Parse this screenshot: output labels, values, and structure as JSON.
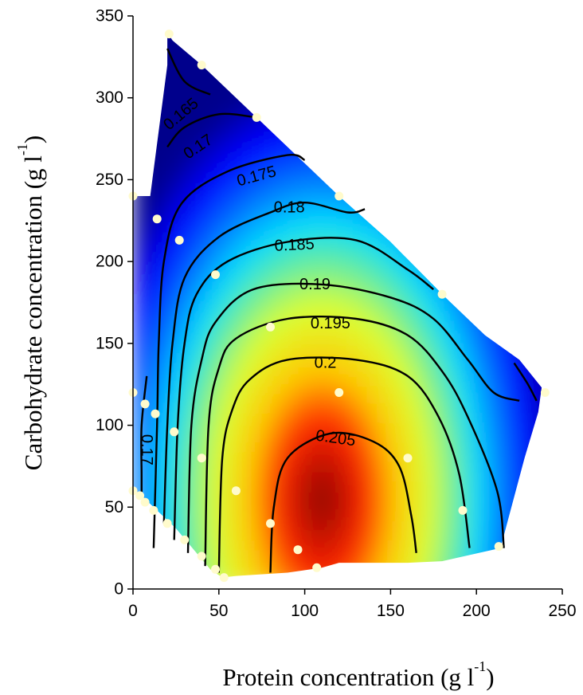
{
  "chart_data": {
    "type": "heatmap",
    "subtype": "filled-contour with scatter overlay",
    "xlabel": "Protein concentration (g l",
    "xlabel_sup": "-1",
    "xlabel_close": ")",
    "ylabel": "Carbohydrate concentration (g l",
    "ylabel_sup": "-1",
    "ylabel_close": ")",
    "xlim": [
      0,
      250
    ],
    "ylim": [
      0,
      350
    ],
    "xticks": [
      "0",
      "50",
      "100",
      "150",
      "200",
      "250"
    ],
    "yticks": [
      "0",
      "50",
      "100",
      "150",
      "200",
      "250",
      "300",
      "350"
    ],
    "grid": false,
    "colormap": "jet",
    "colors": {
      "low": "#0000cc",
      "mid": "#e6ff33",
      "high": "#8b0000",
      "points": "#fffbcc",
      "contour": "#000000"
    },
    "value_range": [
      0.16,
      0.21
    ],
    "surface_peak": {
      "x": 110,
      "y": 55
    },
    "region_outline": [
      [
        20,
        340
      ],
      [
        23,
        335
      ],
      [
        40,
        320
      ],
      [
        72,
        288
      ],
      [
        100,
        260
      ],
      [
        120,
        240
      ],
      [
        150,
        212
      ],
      [
        182,
        178
      ],
      [
        205,
        155
      ],
      [
        225,
        140
      ],
      [
        238,
        123
      ],
      [
        236,
        108
      ],
      [
        228,
        80
      ],
      [
        214,
        25
      ],
      [
        180,
        17
      ],
      [
        160,
        16
      ],
      [
        120,
        16
      ],
      [
        110,
        13
      ],
      [
        90,
        10
      ],
      [
        60,
        8
      ],
      [
        52,
        7
      ],
      [
        45,
        12
      ],
      [
        25,
        37
      ],
      [
        5,
        57
      ],
      [
        0,
        59
      ],
      [
        0,
        240
      ],
      [
        10,
        240
      ],
      [
        20,
        320
      ]
    ],
    "contours": [
      {
        "level": "0.165",
        "label_at": [
          28,
          290
        ],
        "label_angle": -40,
        "path": [
          [
            20,
            330
          ],
          [
            30,
            310
          ],
          [
            45,
            302
          ]
        ]
      },
      {
        "level": "0.17",
        "label_at": [
          38,
          270
        ],
        "label_angle": -34,
        "path": [
          [
            20,
            270
          ],
          [
            30,
            282
          ],
          [
            50,
            290
          ],
          [
            72,
            288
          ]
        ]
      },
      {
        "level": "0.17",
        "label_at": [
          8,
          85
        ],
        "label_angle": 90,
        "path": [
          [
            5,
            55
          ],
          [
            5,
            70
          ],
          [
            5,
            100
          ],
          [
            8,
            130
          ]
        ]
      },
      {
        "level": "0.175",
        "label_at": [
          72,
          252
        ],
        "label_angle": -15,
        "path": [
          [
            12,
            25
          ],
          [
            14,
            100
          ],
          [
            15,
            150
          ],
          [
            18,
            200
          ],
          [
            28,
            235
          ],
          [
            55,
            255
          ],
          [
            90,
            265
          ],
          [
            100,
            262
          ]
        ]
      },
      {
        "level": "0.18",
        "label_at": [
          91,
          233
        ],
        "label_angle": 0,
        "path": [
          [
            18,
            40
          ],
          [
            20,
            100
          ],
          [
            23,
            150
          ],
          [
            30,
            190
          ],
          [
            50,
            215
          ],
          [
            80,
            230
          ],
          [
            100,
            236
          ],
          [
            125,
            230
          ],
          [
            135,
            232
          ]
        ]
      },
      {
        "level": "0.185",
        "label_at": [
          94,
          210
        ],
        "label_angle": -3,
        "path": [
          [
            24,
            30
          ],
          [
            26,
            100
          ],
          [
            30,
            150
          ],
          [
            37,
            180
          ],
          [
            55,
            200
          ],
          [
            90,
            212
          ],
          [
            130,
            213
          ],
          [
            160,
            195
          ],
          [
            175,
            183
          ]
        ]
      },
      {
        "level": "0.19",
        "label_at": [
          106,
          186
        ],
        "label_angle": 0,
        "path": [
          [
            32,
            22
          ],
          [
            34,
            100
          ],
          [
            40,
            140
          ],
          [
            48,
            163
          ],
          [
            70,
            183
          ],
          [
            110,
            186
          ],
          [
            150,
            178
          ],
          [
            175,
            165
          ],
          [
            195,
            140
          ],
          [
            210,
            120
          ],
          [
            225,
            115
          ]
        ]
      },
      {
        "level": "0.195",
        "label_at": [
          115,
          162
        ],
        "label_angle": 0,
        "path": [
          [
            42,
            14
          ],
          [
            44,
            100
          ],
          [
            50,
            135
          ],
          [
            60,
            153
          ],
          [
            90,
            165
          ],
          [
            130,
            165
          ],
          [
            160,
            155
          ],
          [
            180,
            133
          ],
          [
            195,
            105
          ],
          [
            212,
            60
          ],
          [
            216,
            25
          ]
        ]
      },
      {
        "level": "0.2",
        "label_at": [
          112,
          138
        ],
        "label_angle": 0,
        "path": [
          [
            50,
            10
          ],
          [
            52,
            80
          ],
          [
            58,
            110
          ],
          [
            68,
            128
          ],
          [
            90,
            140
          ],
          [
            130,
            140
          ],
          [
            160,
            130
          ],
          [
            178,
            105
          ],
          [
            190,
            70
          ],
          [
            196,
            25
          ]
        ]
      },
      {
        "level": "0.205",
        "label_at": [
          118,
          92
        ],
        "label_angle": 8,
        "path": [
          [
            80,
            10
          ],
          [
            82,
            50
          ],
          [
            90,
            80
          ],
          [
            115,
            95
          ],
          [
            140,
            90
          ],
          [
            155,
            75
          ],
          [
            162,
            45
          ],
          [
            165,
            22
          ]
        ]
      },
      {
        "level": "",
        "label_at": null,
        "label_angle": 0,
        "path": [
          [
            222,
            138
          ],
          [
            230,
            125
          ],
          [
            235,
            115
          ]
        ]
      }
    ],
    "points": [
      {
        "x": 21,
        "y": 339
      },
      {
        "x": 40,
        "y": 320
      },
      {
        "x": 72,
        "y": 288
      },
      {
        "x": 0,
        "y": 240
      },
      {
        "x": 120,
        "y": 240
      },
      {
        "x": 14,
        "y": 226
      },
      {
        "x": 27,
        "y": 213
      },
      {
        "x": 48,
        "y": 192
      },
      {
        "x": 180,
        "y": 180
      },
      {
        "x": 80,
        "y": 160
      },
      {
        "x": 0,
        "y": 120
      },
      {
        "x": 120,
        "y": 120
      },
      {
        "x": 240,
        "y": 120
      },
      {
        "x": 7,
        "y": 113
      },
      {
        "x": 13,
        "y": 107
      },
      {
        "x": 24,
        "y": 96
      },
      {
        "x": 40,
        "y": 80
      },
      {
        "x": 160,
        "y": 80
      },
      {
        "x": 0,
        "y": 60
      },
      {
        "x": 4,
        "y": 57
      },
      {
        "x": 7,
        "y": 53
      },
      {
        "x": 60,
        "y": 60
      },
      {
        "x": 12,
        "y": 48
      },
      {
        "x": 192,
        "y": 48
      },
      {
        "x": 20,
        "y": 40
      },
      {
        "x": 80,
        "y": 40
      },
      {
        "x": 30,
        "y": 30
      },
      {
        "x": 213,
        "y": 26
      },
      {
        "x": 96,
        "y": 24
      },
      {
        "x": 40,
        "y": 20
      },
      {
        "x": 107,
        "y": 13
      },
      {
        "x": 48,
        "y": 12
      },
      {
        "x": 53,
        "y": 7
      }
    ]
  }
}
